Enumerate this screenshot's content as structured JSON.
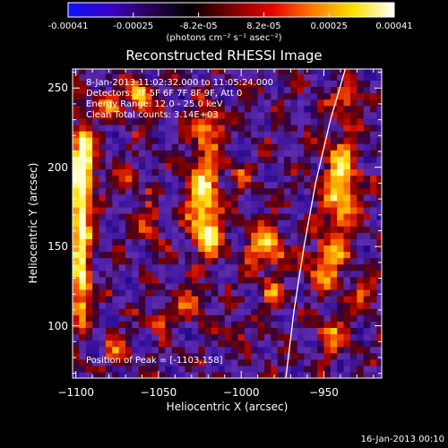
{
  "colorbar": {
    "tick_labels": [
      "-0.00041",
      "-0.00025",
      "-8.2e-05",
      "8.2e-05",
      "0.00025",
      "0.00041"
    ],
    "units_label": "(photons cm⁻² s⁻¹ asec⁻²)",
    "colors": [
      "#0a14ff",
      "#3a00c8",
      "#2a005a",
      "#000000",
      "#7a0000",
      "#e60000",
      "#ff7a00",
      "#ffe000",
      "#ffffff"
    ]
  },
  "info": {
    "time_range": "8-Jan-2013 11:02:32.000 to 11:05:24.000",
    "detectors": "Detectors: 3F 5F 6F 7F 8F 9F, Att 0",
    "energy_range": "Energy Range: 12.0 - 25.0 keV",
    "clean_counts": "Clean     Total counts: 3.14E+03",
    "peak_position": "Position of Peak = [-1103,158]"
  },
  "footer": {
    "timestamp": "16-Jan-2013 00:10"
  },
  "chart_data": {
    "type": "heatmap",
    "title": "Reconstructed RHESSI Image",
    "xlabel": "Heliocentric X (arcsec)",
    "ylabel": "Heliocentric Y (arcsec)",
    "xlim": [
      -1102,
      -915
    ],
    "ylim": [
      67,
      262
    ],
    "x_ticks": [
      -1100,
      -1050,
      -1000,
      -950
    ],
    "y_ticks": [
      100,
      150,
      200,
      250
    ],
    "x_tick_labels": [
      "−1100",
      "−1050",
      "−1000",
      "−950"
    ],
    "y_tick_labels": [
      "100",
      "150",
      "200",
      "250"
    ],
    "colorbar_range": [
      -0.00041,
      0.00041
    ],
    "peak": [
      -1103,
      158
    ],
    "limb_curve": [
      [
        -973,
        67
      ],
      [
        -968,
        110
      ],
      [
        -962,
        150
      ],
      [
        -955,
        190
      ],
      [
        -946,
        230
      ],
      [
        -937,
        262
      ]
    ],
    "blobs": [
      {
        "x": -1097,
        "y": 165,
        "sx": 4,
        "sy": 35,
        "v": 1.0
      },
      {
        "x": -1095,
        "y": 205,
        "sx": 5,
        "sy": 15,
        "v": 0.75
      },
      {
        "x": -1097,
        "y": 120,
        "sx": 4,
        "sy": 10,
        "v": 0.45
      },
      {
        "x": -1080,
        "y": 240,
        "sx": 5,
        "sy": 6,
        "v": 0.55
      },
      {
        "x": -1062,
        "y": 245,
        "sx": 5,
        "sy": 8,
        "v": 0.7
      },
      {
        "x": -1020,
        "y": 225,
        "sx": 6,
        "sy": 8,
        "v": 0.65
      },
      {
        "x": -1022,
        "y": 180,
        "sx": 7,
        "sy": 18,
        "v": 0.9
      },
      {
        "x": -1020,
        "y": 155,
        "sx": 6,
        "sy": 8,
        "v": 0.55
      },
      {
        "x": -1030,
        "y": 115,
        "sx": 5,
        "sy": 6,
        "v": 0.5
      },
      {
        "x": -1050,
        "y": 105,
        "sx": 5,
        "sy": 5,
        "v": 0.55
      },
      {
        "x": -1055,
        "y": 165,
        "sx": 5,
        "sy": 8,
        "v": 0.45
      },
      {
        "x": -985,
        "y": 150,
        "sx": 8,
        "sy": 10,
        "v": 0.7
      },
      {
        "x": -982,
        "y": 120,
        "sx": 5,
        "sy": 5,
        "v": 0.5
      },
      {
        "x": -940,
        "y": 190,
        "sx": 7,
        "sy": 22,
        "v": 0.8
      },
      {
        "x": -948,
        "y": 140,
        "sx": 8,
        "sy": 12,
        "v": 0.6
      },
      {
        "x": -935,
        "y": 245,
        "sx": 6,
        "sy": 6,
        "v": 0.5
      },
      {
        "x": -945,
        "y": 95,
        "sx": 6,
        "sy": 8,
        "v": 0.5
      },
      {
        "x": -925,
        "y": 120,
        "sx": 5,
        "sy": 6,
        "v": 0.45
      },
      {
        "x": -1075,
        "y": 85,
        "sx": 6,
        "sy": 6,
        "v": 0.4
      },
      {
        "x": -1005,
        "y": 95,
        "sx": 5,
        "sy": 5,
        "v": 0.4
      },
      {
        "x": -1000,
        "y": 195,
        "sx": 4,
        "sy": 5,
        "v": 0.35
      },
      {
        "x": -1070,
        "y": 190,
        "sx": 5,
        "sy": 6,
        "v": 0.4
      }
    ]
  }
}
